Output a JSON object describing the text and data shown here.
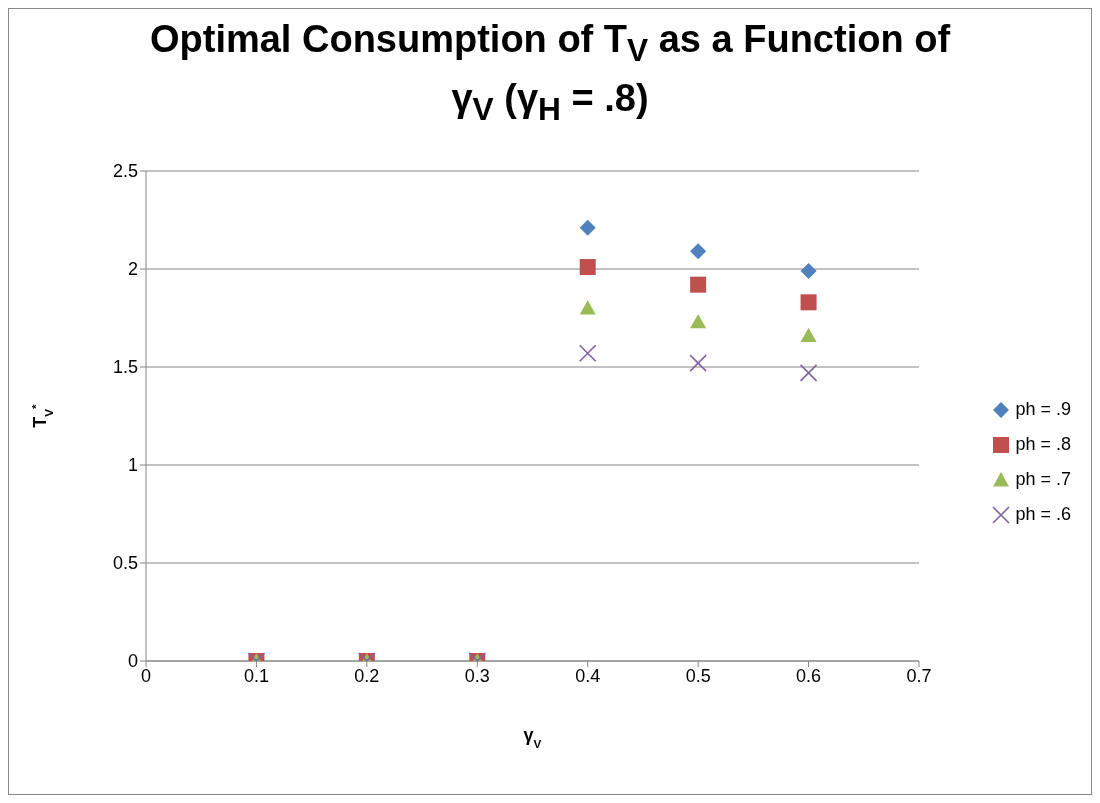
{
  "chart_data": {
    "type": "scatter",
    "title": "Optimal Consumption of T$_{V}$ as a Function of γ$_{V}$ (γ$_{H}$ = .8)",
    "xlabel": "γ$_{V}$",
    "ylabel": "T$_{V}$$^{*}$",
    "x": [
      0.1,
      0.2,
      0.3,
      0.4,
      0.5,
      0.6
    ],
    "series": [
      {
        "name": "ph = .9",
        "color": "#4f81bd",
        "marker": "diamond",
        "values": [
          null,
          null,
          null,
          2.21,
          2.09,
          1.99
        ]
      },
      {
        "name": "ph = .8",
        "color": "#c0504d",
        "marker": "square",
        "values": [
          0,
          0,
          0,
          2.01,
          1.92,
          1.83
        ]
      },
      {
        "name": "ph = .7",
        "color": "#9bbb59",
        "marker": "triangle",
        "values": [
          0,
          0,
          0,
          1.8,
          1.73,
          1.66
        ]
      },
      {
        "name": "ph = .6",
        "color": "#8064a2",
        "marker": "cross",
        "values": [
          0,
          0,
          0,
          1.57,
          1.52,
          1.47
        ]
      }
    ],
    "xlim": [
      0,
      0.7
    ],
    "xticks": [
      0,
      0.1,
      0.2,
      0.3,
      0.4,
      0.5,
      0.6,
      0.7
    ],
    "ylim": [
      0,
      2.5
    ],
    "yticks": [
      0,
      0.5,
      1,
      1.5,
      2,
      2.5
    ],
    "grid": "y",
    "legend": "right"
  }
}
